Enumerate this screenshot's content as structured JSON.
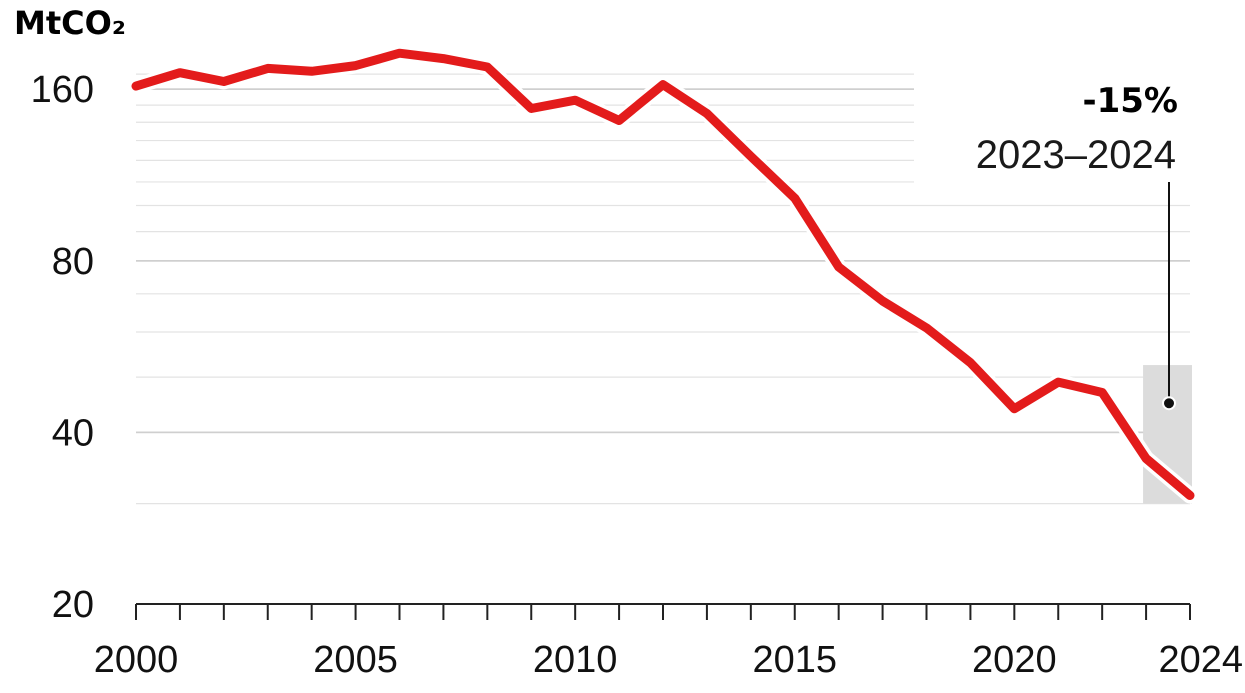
{
  "colors": {
    "series": "#e31b1b",
    "gridline": "#e3e3e3",
    "gridline_major": "#cfcfcf",
    "highlight": "#dcdcdc",
    "axis": "#222222",
    "text": "#111111"
  },
  "chart_data": {
    "type": "line",
    "title": "",
    "unit_label": "MtCO₂",
    "xlabel": "",
    "ylabel": "MtCO₂",
    "y_scale": "log",
    "ylim": [
      20,
      180
    ],
    "y_ticks": [
      20,
      40,
      80,
      160
    ],
    "y_tick_labels": [
      "20",
      "40",
      "80",
      "160"
    ],
    "x_ticks": [
      2000,
      2005,
      2010,
      2015,
      2020,
      2024
    ],
    "x_tick_labels": [
      "2000",
      "2005",
      "2010",
      "2015",
      "2020",
      "2024"
    ],
    "grid": true,
    "series": [
      {
        "x": [
          2000,
          2001,
          2002,
          2003,
          2004,
          2005,
          2006,
          2007,
          2008,
          2009,
          2010,
          2011,
          2012,
          2013,
          2014,
          2015,
          2016,
          2017,
          2018,
          2019,
          2020,
          2021,
          2022,
          2023,
          2024
        ],
        "y": [
          162,
          171,
          165,
          174,
          172,
          176,
          185,
          181,
          175,
          148,
          153,
          141,
          163,
          145,
          122,
          103,
          78,
          68,
          61,
          53,
          44,
          49,
          47,
          36,
          31
        ]
      }
    ],
    "highlight": {
      "x_start": 2023,
      "x_end": 2024
    },
    "annotation": {
      "value": "-15%",
      "range": "2023–2024"
    }
  }
}
